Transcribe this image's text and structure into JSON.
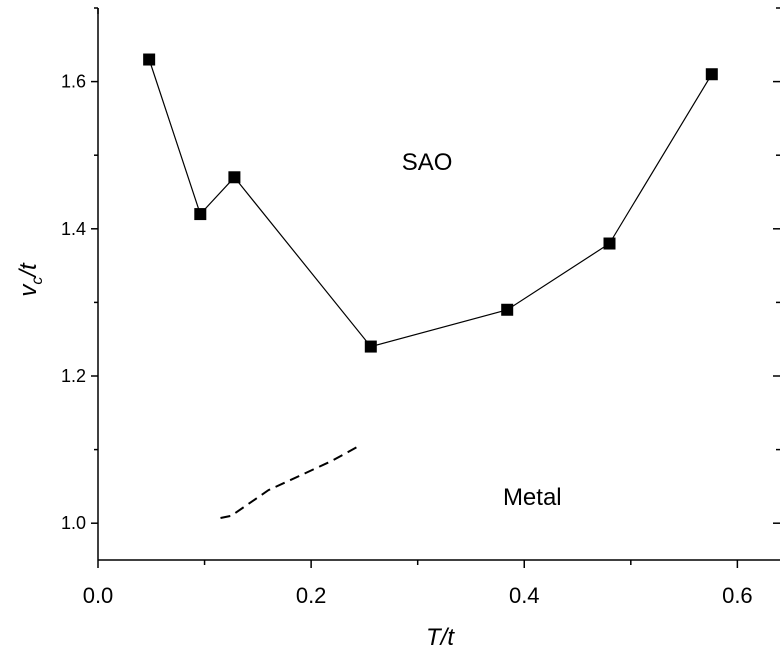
{
  "chart_data": {
    "type": "line",
    "xlabel": "T/t",
    "ylabel_main": "v",
    "ylabel_sub": "c",
    "ylabel_tail": "/t",
    "xlim": [
      0.0,
      0.64
    ],
    "ylim": [
      0.95,
      1.7
    ],
    "xticks": [
      {
        "value": 0.0,
        "label": "0.0"
      },
      {
        "value": 0.2,
        "label": "0.2"
      },
      {
        "value": 0.4,
        "label": "0.4"
      },
      {
        "value": 0.6,
        "label": "0.6"
      }
    ],
    "yticks": [
      {
        "value": 1.0,
        "label": "1.0"
      },
      {
        "value": 1.2,
        "label": "1.2"
      },
      {
        "value": 1.4,
        "label": "1.4"
      },
      {
        "value": 1.6,
        "label": "1.6"
      }
    ],
    "series": [
      {
        "style": "solid-line-square-markers",
        "color": "#000000",
        "x": [
          0.048,
          0.096,
          0.128,
          0.256,
          0.384,
          0.48,
          0.576
        ],
        "y": [
          1.63,
          1.42,
          1.47,
          1.24,
          1.29,
          1.38,
          1.61
        ]
      },
      {
        "style": "dashed-line",
        "color": "#000000",
        "x": [
          0.115,
          0.125,
          0.14,
          0.16,
          0.19,
          0.22,
          0.245
        ],
        "y": [
          1.007,
          1.01,
          1.025,
          1.045,
          1.065,
          1.085,
          1.105
        ]
      }
    ],
    "annotations": [
      {
        "text": "SAO",
        "x": 0.285,
        "y": 1.48
      },
      {
        "text": "Metal",
        "x": 0.38,
        "y": 1.025
      }
    ],
    "grid": false
  }
}
